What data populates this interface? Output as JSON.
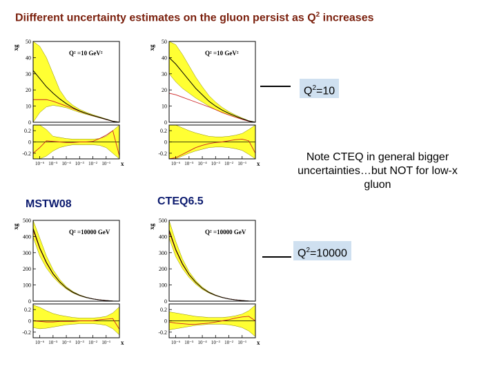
{
  "title": {
    "text": "Diifferent uncertainty estimates on the gluon persist as Q",
    "sup": "2",
    "rest": " increases"
  },
  "labels": {
    "mstw": "MSTW08",
    "cteq": "CTEQ6.5"
  },
  "callouts": {
    "q10": {
      "text": "Q",
      "sup": "2",
      "rest": "=10"
    },
    "q10000": {
      "text": "Q",
      "sup": "2",
      "rest": "=10000"
    }
  },
  "note": "Note CTEQ in general bigger uncertainties…but NOT for low-x gluon",
  "colors": {
    "band": "#ffff33",
    "central": "#000000",
    "alt": "#cc2222",
    "title": "#7a1f0c",
    "label": "#0b1a6e",
    "callout_bg": "#cfe0f0"
  },
  "chart_data": [
    {
      "type": "area",
      "group": "MSTW08",
      "panel": "top-left",
      "ylabel": "xg",
      "legend_text": "Q² =10 GeV²",
      "yticks": [
        "50",
        "40",
        "30",
        "20",
        "10",
        "0"
      ],
      "ylim": [
        0,
        50
      ],
      "rticks": [
        "0.2",
        "0",
        "-0.2"
      ],
      "rlim": [
        -0.3,
        0.3
      ],
      "xticks": [
        "10⁻⁶",
        "10⁻⁵",
        "10⁻⁴",
        "10⁻³",
        "10⁻²",
        "10⁻¹"
      ],
      "xlabel": "x",
      "x": [
        -6.5,
        -6,
        -5.5,
        -5,
        -4.5,
        -4,
        -3.5,
        -3,
        -2.5,
        -2,
        -1.5,
        -1,
        -0.5,
        0
      ],
      "central": [
        32,
        27,
        22,
        18,
        14.5,
        11.5,
        9,
        7,
        5.5,
        4.2,
        3,
        1.8,
        0.6,
        0
      ],
      "band_hi": [
        50,
        47,
        40,
        30,
        20,
        14,
        10.5,
        8,
        6.2,
        4.7,
        3.4,
        2.1,
        0.8,
        0.2
      ],
      "band_lo": [
        0,
        6,
        9.5,
        10.5,
        9.8,
        9,
        7.5,
        6.1,
        4.9,
        3.8,
        2.7,
        1.6,
        0.5,
        0
      ],
      "alt": [
        14,
        14,
        14,
        13,
        11.5,
        10,
        8.5,
        6.8,
        5.4,
        4.1,
        2.9,
        1.7,
        0.6,
        0
      ],
      "ratio_hi": [
        0.3,
        0.3,
        0.22,
        0.1,
        0.08,
        0.06,
        0.05,
        0.05,
        0.05,
        0.05,
        0.06,
        0.1,
        0.2,
        0.3
      ],
      "ratio_lo": [
        -0.3,
        -0.3,
        -0.25,
        -0.16,
        -0.1,
        -0.07,
        -0.05,
        -0.05,
        -0.05,
        -0.05,
        -0.06,
        -0.1,
        -0.2,
        -0.3
      ],
      "ratio_alt": [
        -0.2,
        -0.1,
        0.02,
        0.01,
        0,
        -0.01,
        -0.01,
        0,
        0,
        0.01,
        0.06,
        0.12,
        0.2,
        -0.25
      ]
    },
    {
      "type": "area",
      "group": "CTEQ6.5",
      "panel": "top-right",
      "ylabel": "xg",
      "legend_text": "Q² =10 GeV²",
      "yticks": [
        "50",
        "40",
        "30",
        "20",
        "10",
        "0"
      ],
      "ylim": [
        0,
        50
      ],
      "rticks": [
        "0.2",
        "0",
        "-0.2"
      ],
      "rlim": [
        -0.3,
        0.3
      ],
      "xticks": [
        "10⁻⁶",
        "10⁻⁵",
        "10⁻⁴",
        "10⁻³",
        "10⁻²",
        "10⁻¹"
      ],
      "xlabel": "x",
      "x": [
        -6.5,
        -6,
        -5.5,
        -5,
        -4.5,
        -4,
        -3.5,
        -3,
        -2.5,
        -2,
        -1.5,
        -1,
        -0.5,
        0
      ],
      "central": [
        40,
        36,
        31,
        26,
        21,
        17,
        13,
        10,
        7.5,
        5.5,
        3.8,
        2.2,
        0.8,
        0
      ],
      "band_hi": [
        50,
        48,
        42,
        35,
        28,
        22,
        16.5,
        12.5,
        9.2,
        6.6,
        4.5,
        2.7,
        1,
        0.2
      ],
      "band_lo": [
        30,
        25,
        21,
        18,
        15,
        12.5,
        10,
        7.8,
        6,
        4.5,
        3.1,
        1.8,
        0.6,
        0
      ],
      "alt": [
        18,
        17,
        15.5,
        14,
        12.5,
        11,
        9.5,
        7.8,
        6,
        4.5,
        3.1,
        1.8,
        0.6,
        0
      ],
      "ratio_hi": [
        0.3,
        0.3,
        0.25,
        0.2,
        0.16,
        0.13,
        0.1,
        0.09,
        0.09,
        0.1,
        0.12,
        0.15,
        0.22,
        0.3
      ],
      "ratio_lo": [
        -0.3,
        -0.3,
        -0.25,
        -0.2,
        -0.16,
        -0.13,
        -0.1,
        -0.09,
        -0.09,
        -0.1,
        -0.12,
        -0.15,
        -0.22,
        -0.3
      ],
      "ratio_alt": [
        -0.3,
        -0.28,
        -0.22,
        -0.16,
        -0.1,
        -0.06,
        -0.03,
        -0.01,
        0,
        0.02,
        0.04,
        0.05,
        0.02,
        -0.2
      ]
    },
    {
      "type": "area",
      "group": "MSTW08",
      "panel": "bottom-left",
      "ylabel": "xg",
      "legend_text": "Q² =10000 GeV",
      "yticks": [
        "500",
        "400",
        "300",
        "200",
        "100",
        "0"
      ],
      "ylim": [
        0,
        500
      ],
      "rticks": [
        "0.2",
        "0",
        "-0.2"
      ],
      "rlim": [
        -0.3,
        0.3
      ],
      "xticks": [
        "10⁻⁶",
        "10⁻⁵",
        "10⁻⁴",
        "10⁻³",
        "10⁻²",
        "10⁻¹"
      ],
      "xlabel": "x",
      "x": [
        -6.5,
        -6,
        -5.5,
        -5,
        -4.5,
        -4,
        -3.5,
        -3,
        -2.5,
        -2,
        -1.5,
        -1,
        -0.5,
        0
      ],
      "central": [
        450,
        330,
        240,
        170,
        120,
        82,
        55,
        36,
        23,
        14,
        8,
        4,
        1,
        0
      ],
      "band_hi": [
        500,
        390,
        280,
        195,
        135,
        90,
        60,
        39,
        25,
        15,
        9,
        4.5,
        1.3,
        0.2
      ],
      "band_lo": [
        395,
        280,
        205,
        150,
        108,
        75,
        50,
        33,
        21,
        13,
        7.4,
        3.6,
        0.8,
        0
      ],
      "alt": [
        440,
        325,
        236,
        168,
        119,
        81,
        54,
        36,
        23,
        14,
        8,
        4,
        1,
        0
      ],
      "ratio_hi": [
        0.28,
        0.24,
        0.18,
        0.13,
        0.1,
        0.08,
        0.06,
        0.05,
        0.05,
        0.05,
        0.06,
        0.08,
        0.14,
        0.25
      ],
      "ratio_lo": [
        -0.12,
        -0.14,
        -0.13,
        -0.11,
        -0.09,
        -0.07,
        -0.06,
        -0.05,
        -0.05,
        -0.05,
        -0.06,
        -0.08,
        -0.14,
        -0.25
      ],
      "ratio_alt": [
        0,
        -0.01,
        -0.02,
        -0.02,
        -0.01,
        -0.01,
        -0.01,
        0,
        0,
        0,
        0.02,
        0.03,
        0.04,
        -0.15
      ]
    },
    {
      "type": "area",
      "group": "CTEQ6.5",
      "panel": "bottom-right",
      "ylabel": "xg",
      "legend_text": "Q² =10000 GeV",
      "yticks": [
        "500",
        "400",
        "300",
        "200",
        "100",
        "0"
      ],
      "ylim": [
        0,
        500
      ],
      "rticks": [
        "0.2",
        "0",
        "-0.2"
      ],
      "rlim": [
        -0.3,
        0.3
      ],
      "xticks": [
        "10⁻⁶",
        "10⁻⁵",
        "10⁻⁴",
        "10⁻³",
        "10⁻²",
        "10⁻¹"
      ],
      "xlabel": "x",
      "x": [
        -6.5,
        -6,
        -5.5,
        -5,
        -4.5,
        -4,
        -3.5,
        -3,
        -2.5,
        -2,
        -1.5,
        -1,
        -0.5,
        0
      ],
      "central": [
        440,
        320,
        232,
        165,
        117,
        80,
        54,
        36,
        23,
        14,
        8,
        4,
        1,
        0
      ],
      "band_hi": [
        500,
        370,
        262,
        183,
        128,
        87,
        58,
        38.5,
        24.5,
        15,
        8.7,
        4.4,
        1.2,
        0.2
      ],
      "band_lo": [
        390,
        275,
        202,
        147,
        105,
        73,
        50,
        33.5,
        21.5,
        13,
        7.3,
        3.6,
        0.8,
        0
      ],
      "alt": [
        430,
        315,
        228,
        163,
        116,
        80,
        54,
        36,
        23,
        14,
        8,
        4,
        1,
        0
      ],
      "ratio_hi": [
        0.16,
        0.14,
        0.12,
        0.1,
        0.08,
        0.07,
        0.06,
        0.06,
        0.06,
        0.07,
        0.09,
        0.12,
        0.18,
        0.28
      ],
      "ratio_lo": [
        -0.16,
        -0.14,
        -0.12,
        -0.1,
        -0.08,
        -0.07,
        -0.06,
        -0.06,
        -0.06,
        -0.07,
        -0.09,
        -0.12,
        -0.18,
        -0.28
      ],
      "ratio_alt": [
        -0.02,
        -0.04,
        -0.05,
        -0.06,
        -0.06,
        -0.05,
        -0.04,
        -0.02,
        0,
        0.02,
        0.05,
        0.07,
        0.08,
        0
      ]
    }
  ]
}
